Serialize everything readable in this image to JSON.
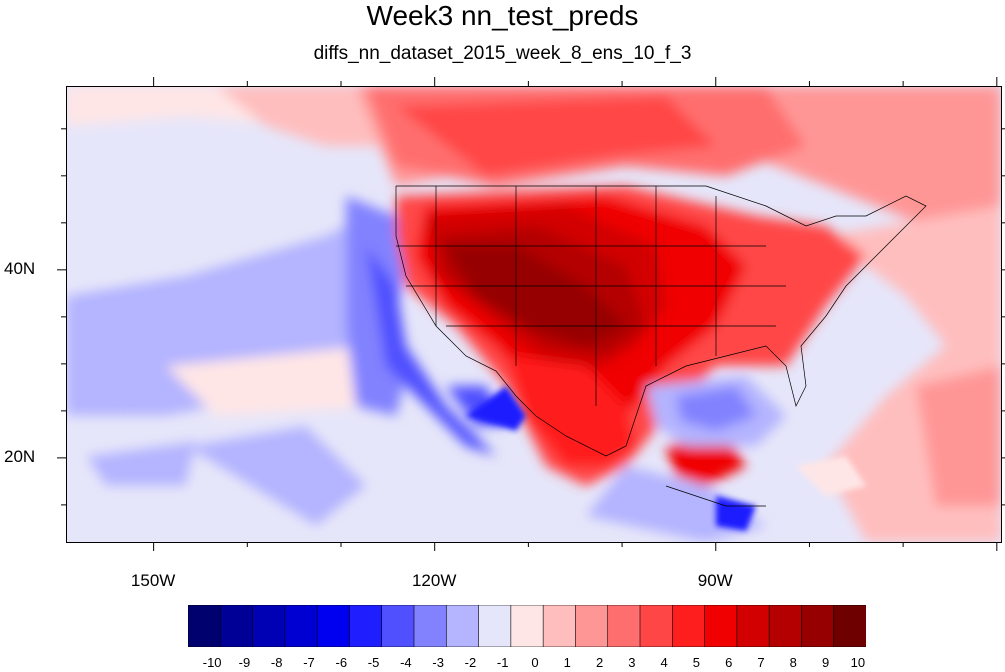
{
  "title": "Week3 nn_test_preds",
  "subtitle": "diffs_nn_dataset_2015_week_8_ens_10_f_3",
  "map": {
    "projection": "cylindrical equidistant",
    "lon_range": [
      -159.3,
      -59.5
    ],
    "lat_range": [
      11,
      59.5
    ],
    "lat_ticks": [
      {
        "value": 40,
        "label": "40N"
      },
      {
        "value": 20,
        "label": "20N"
      }
    ],
    "lon_ticks": [
      {
        "value": -150,
        "label": "150W"
      },
      {
        "value": -120,
        "label": "120W"
      },
      {
        "value": -90,
        "label": "90W"
      }
    ]
  },
  "colorbar": {
    "labels": [
      "-10",
      "-9",
      "-8",
      "-7",
      "-6",
      "-5",
      "-4",
      "-3",
      "-2",
      "-1",
      "0",
      "1",
      "2",
      "3",
      "4",
      "5",
      "6",
      "7",
      "8",
      "9",
      "10"
    ],
    "colors": [
      "#00006e",
      "#000096",
      "#0000b4",
      "#0000d2",
      "#0000f0",
      "#1e1eff",
      "#5050ff",
      "#8282ff",
      "#b4b4ff",
      "#e6e6fa",
      "#ffe6e6",
      "#ffbebe",
      "#ff9696",
      "#ff6e6e",
      "#ff4646",
      "#ff1e1e",
      "#f00000",
      "#d20000",
      "#b40000",
      "#960000",
      "#6e0000"
    ]
  }
}
